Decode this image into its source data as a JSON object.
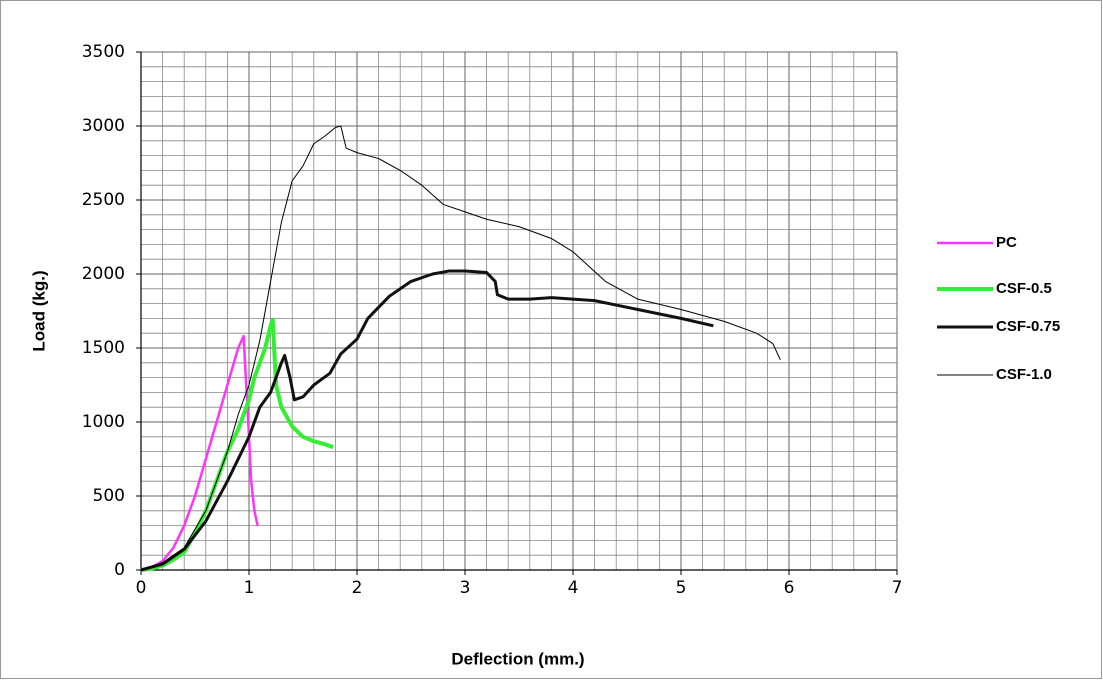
{
  "chart_data": {
    "type": "line",
    "x_label": "Deflection (mm.)",
    "y_label": "Load (kg.)",
    "xlim": [
      0,
      7
    ],
    "xticks": [
      0,
      1,
      2,
      3,
      4,
      5,
      6,
      7
    ],
    "ylim": [
      0,
      3500
    ],
    "yticks": [
      0,
      500,
      1000,
      1500,
      2000,
      2500,
      3000,
      3500
    ],
    "grid": true,
    "minor_grid": {
      "x": 0.2,
      "y": 100
    },
    "legend": "right",
    "series": [
      {
        "name": "PC",
        "color": "#ff33ff",
        "line_width": 2.5,
        "x": [
          0,
          0.1,
          0.2,
          0.3,
          0.4,
          0.5,
          0.6,
          0.7,
          0.8,
          0.9,
          0.95,
          1.0,
          1.02,
          1.05,
          1.08
        ],
        "values": [
          0,
          20,
          60,
          150,
          300,
          500,
          750,
          1000,
          1250,
          1500,
          1580,
          900,
          600,
          400,
          300
        ]
      },
      {
        "name": "CSF-0.5",
        "color": "#33ee33",
        "line_width": 4,
        "x": [
          0,
          0.1,
          0.2,
          0.3,
          0.4,
          0.5,
          0.6,
          0.7,
          0.8,
          0.9,
          1.0,
          1.05,
          1.1,
          1.15,
          1.2,
          1.22,
          1.25,
          1.3,
          1.4,
          1.5,
          1.6,
          1.7,
          1.78
        ],
        "values": [
          0,
          10,
          30,
          70,
          120,
          250,
          400,
          600,
          800,
          950,
          1150,
          1300,
          1400,
          1500,
          1650,
          1690,
          1250,
          1100,
          970,
          900,
          870,
          850,
          830
        ]
      },
      {
        "name": "CSF-0.75",
        "color": "#111111",
        "line_width": 3,
        "x": [
          0,
          0.2,
          0.4,
          0.6,
          0.8,
          1.0,
          1.1,
          1.2,
          1.3,
          1.33,
          1.38,
          1.42,
          1.5,
          1.6,
          1.75,
          1.85,
          2.0,
          2.1,
          2.3,
          2.5,
          2.7,
          2.85,
          3.0,
          3.2,
          3.28,
          3.3,
          3.4,
          3.6,
          3.8,
          4.2,
          4.6,
          5.0,
          5.3
        ],
        "values": [
          0,
          40,
          140,
          330,
          600,
          900,
          1100,
          1200,
          1400,
          1450,
          1300,
          1150,
          1170,
          1250,
          1330,
          1460,
          1560,
          1700,
          1850,
          1950,
          2000,
          2020,
          2020,
          2010,
          1950,
          1860,
          1830,
          1830,
          1840,
          1820,
          1760,
          1700,
          1650
        ]
      },
      {
        "name": "CSF-1.0",
        "color": "#000000",
        "line_width": 1,
        "x": [
          0,
          0.2,
          0.4,
          0.6,
          0.8,
          0.9,
          1.0,
          1.1,
          1.2,
          1.3,
          1.4,
          1.5,
          1.6,
          1.7,
          1.8,
          1.85,
          1.9,
          2.0,
          2.2,
          2.4,
          2.6,
          2.8,
          3.0,
          3.2,
          3.5,
          3.8,
          4.0,
          4.3,
          4.6,
          5.0,
          5.4,
          5.7,
          5.85,
          5.92
        ],
        "values": [
          0,
          50,
          150,
          400,
          800,
          1050,
          1250,
          1550,
          1950,
          2350,
          2630,
          2730,
          2880,
          2930,
          2990,
          3000,
          2850,
          2820,
          2780,
          2700,
          2600,
          2470,
          2420,
          2370,
          2320,
          2240,
          2150,
          1950,
          1830,
          1760,
          1680,
          1600,
          1530,
          1420
        ]
      }
    ]
  }
}
